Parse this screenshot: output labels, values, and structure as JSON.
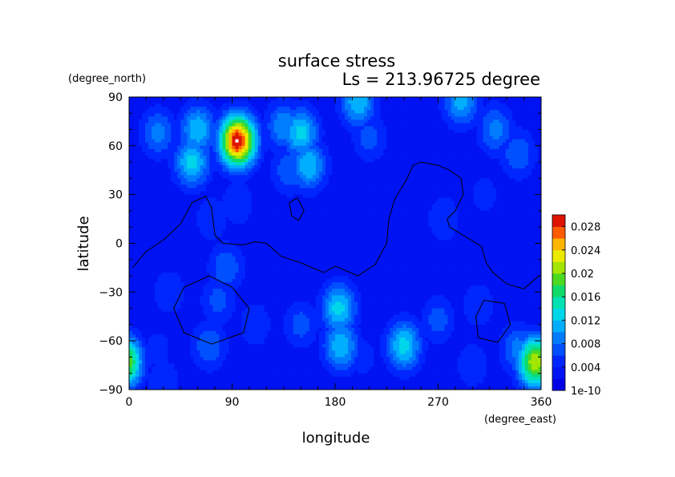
{
  "chart_data": {
    "type": "heatmap",
    "title": "surface stress",
    "subtitle": "Ls = 213.96725 degree",
    "xlabel": "longitude",
    "ylabel": "latitude",
    "xunit": "(degree_east)",
    "yunit": "(degree_north)",
    "xlim": [
      0,
      360
    ],
    "ylim": [
      -90,
      90
    ],
    "xticks": [
      "0",
      "90",
      "180",
      "270",
      "360"
    ],
    "yticks": [
      "90",
      "60",
      "30",
      "0",
      "−30",
      "−60",
      "−90"
    ],
    "colorbar": {
      "min": 0,
      "max": 0.03,
      "tick_labels": [
        "0.028",
        "0.024",
        "0.02",
        "0.016",
        "0.012",
        "0.008",
        "0.004",
        "1e-10"
      ],
      "tick_values": [
        0.028,
        0.024,
        0.02,
        0.016,
        0.012,
        0.008,
        0.004,
        0
      ]
    },
    "grid": false,
    "background_value": 0.002,
    "hotspots": [
      {
        "lon": 95,
        "lat": 63,
        "value": 0.03
      },
      {
        "lon": 60,
        "lat": 70,
        "value": 0.012
      },
      {
        "lon": 25,
        "lat": 68,
        "value": 0.009
      },
      {
        "lon": 150,
        "lat": 68,
        "value": 0.013
      },
      {
        "lon": 135,
        "lat": 72,
        "value": 0.01
      },
      {
        "lon": 55,
        "lat": 50,
        "value": 0.013
      },
      {
        "lon": 157,
        "lat": 48,
        "value": 0.012
      },
      {
        "lon": 140,
        "lat": 45,
        "value": 0.008
      },
      {
        "lon": 200,
        "lat": 87,
        "value": 0.012
      },
      {
        "lon": 290,
        "lat": 87,
        "value": 0.011
      },
      {
        "lon": 320,
        "lat": 70,
        "value": 0.009
      },
      {
        "lon": 340,
        "lat": 55,
        "value": 0.008
      },
      {
        "lon": 210,
        "lat": 65,
        "value": 0.007
      },
      {
        "lon": 72,
        "lat": 15,
        "value": 0.006
      },
      {
        "lon": 95,
        "lat": 25,
        "value": 0.006
      },
      {
        "lon": 85,
        "lat": -15,
        "value": 0.008
      },
      {
        "lon": 78,
        "lat": -35,
        "value": 0.007
      },
      {
        "lon": 35,
        "lat": -30,
        "value": 0.006
      },
      {
        "lon": 183,
        "lat": -40,
        "value": 0.013
      },
      {
        "lon": 150,
        "lat": -50,
        "value": 0.007
      },
      {
        "lon": 110,
        "lat": -50,
        "value": 0.006
      },
      {
        "lon": 185,
        "lat": -63,
        "value": 0.012
      },
      {
        "lon": 240,
        "lat": -63,
        "value": 0.013
      },
      {
        "lon": 270,
        "lat": -47,
        "value": 0.007
      },
      {
        "lon": 305,
        "lat": -38,
        "value": 0.006
      },
      {
        "lon": 70,
        "lat": -63,
        "value": 0.008
      },
      {
        "lon": 25,
        "lat": -65,
        "value": 0.005
      },
      {
        "lon": 355,
        "lat": -73,
        "value": 0.022
      },
      {
        "lon": 340,
        "lat": -65,
        "value": 0.009
      },
      {
        "lon": 205,
        "lat": -70,
        "value": 0.005
      },
      {
        "lon": 300,
        "lat": -75,
        "value": 0.006
      },
      {
        "lon": 275,
        "lat": 15,
        "value": 0.006
      },
      {
        "lon": 310,
        "lat": 30,
        "value": 0.005
      },
      {
        "lon": 30,
        "lat": -85,
        "value": 0.006
      }
    ],
    "contours": [
      {
        "name": "topography-1",
        "closed": false,
        "points": [
          [
            3,
            -15
          ],
          [
            15,
            -5
          ],
          [
            30,
            2
          ],
          [
            45,
            12
          ],
          [
            55,
            25
          ],
          [
            67,
            29
          ],
          [
            72,
            22
          ],
          [
            75,
            5
          ],
          [
            82,
            0
          ],
          [
            100,
            -1
          ],
          [
            110,
            1
          ],
          [
            120,
            0
          ],
          [
            133,
            -8
          ],
          [
            150,
            -12
          ],
          [
            170,
            -18
          ],
          [
            180,
            -14
          ],
          [
            200,
            -20
          ],
          [
            215,
            -13
          ],
          [
            225,
            0
          ],
          [
            227,
            15
          ],
          [
            232,
            27
          ],
          [
            243,
            40
          ],
          [
            248,
            48
          ],
          [
            255,
            50
          ],
          [
            270,
            48
          ],
          [
            280,
            45
          ],
          [
            290,
            40
          ],
          [
            292,
            30
          ],
          [
            285,
            20
          ],
          [
            278,
            15
          ],
          [
            280,
            10
          ],
          [
            292,
            5
          ],
          [
            308,
            -2
          ],
          [
            312,
            -12
          ],
          [
            318,
            -18
          ],
          [
            330,
            -25
          ],
          [
            345,
            -28
          ],
          [
            358,
            -20
          ]
        ]
      },
      {
        "name": "topography-2",
        "closed": true,
        "points": [
          [
            70,
            -20
          ],
          [
            90,
            -27
          ],
          [
            105,
            -40
          ],
          [
            100,
            -55
          ],
          [
            72,
            -62
          ],
          [
            48,
            -55
          ],
          [
            39,
            -40
          ],
          [
            48,
            -27
          ]
        ]
      },
      {
        "name": "topography-3",
        "closed": true,
        "points": [
          [
            310,
            -35
          ],
          [
            328,
            -37
          ],
          [
            333,
            -50
          ],
          [
            322,
            -61
          ],
          [
            305,
            -58
          ],
          [
            303,
            -45
          ]
        ]
      },
      {
        "name": "topography-4",
        "closed": true,
        "points": [
          [
            140,
            25
          ],
          [
            147,
            28
          ],
          [
            153,
            20
          ],
          [
            148,
            14
          ],
          [
            142,
            17
          ]
        ]
      }
    ]
  }
}
